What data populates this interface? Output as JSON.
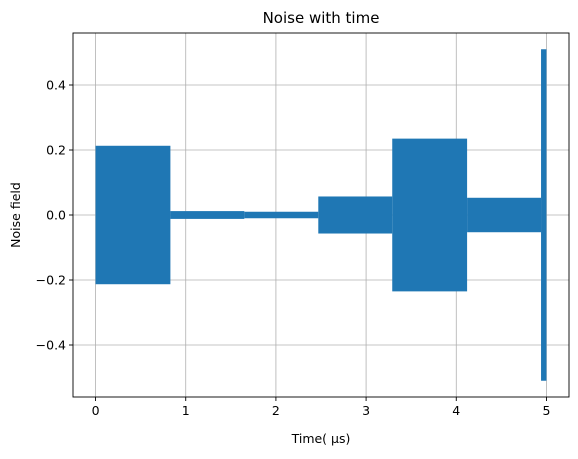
{
  "chart_data": {
    "type": "area",
    "title": "Noise with time",
    "xlabel": "Time( μs)",
    "ylabel": "Noise field",
    "xlim": [
      -0.25,
      5.25
    ],
    "ylim": [
      -0.56,
      0.56
    ],
    "xticks": [
      0,
      1,
      2,
      3,
      4,
      5
    ],
    "yticks": [
      -0.4,
      -0.2,
      0.0,
      0.2,
      0.4
    ],
    "xtick_labels": [
      "0",
      "1",
      "2",
      "3",
      "4",
      "5"
    ],
    "ytick_labels": [
      "−0.4",
      "−0.2",
      "0.0",
      "0.2",
      "0.4"
    ],
    "grid": true,
    "series": [
      {
        "color": "#1f77b4",
        "segments": [
          {
            "x": [
              0.0,
              0.83
            ],
            "amplitude": 0.213
          },
          {
            "x": [
              0.83,
              1.65
            ],
            "amplitude": 0.012
          },
          {
            "x": [
              1.65,
              2.47
            ],
            "amplitude": 0.01
          },
          {
            "x": [
              2.47,
              3.29
            ],
            "amplitude": 0.057
          },
          {
            "x": [
              3.29,
              4.12
            ],
            "amplitude": 0.235
          },
          {
            "x": [
              4.12,
              4.94
            ],
            "amplitude": 0.053
          },
          {
            "x": [
              4.94,
              5.0
            ],
            "amplitude": 0.51
          }
        ]
      }
    ]
  }
}
